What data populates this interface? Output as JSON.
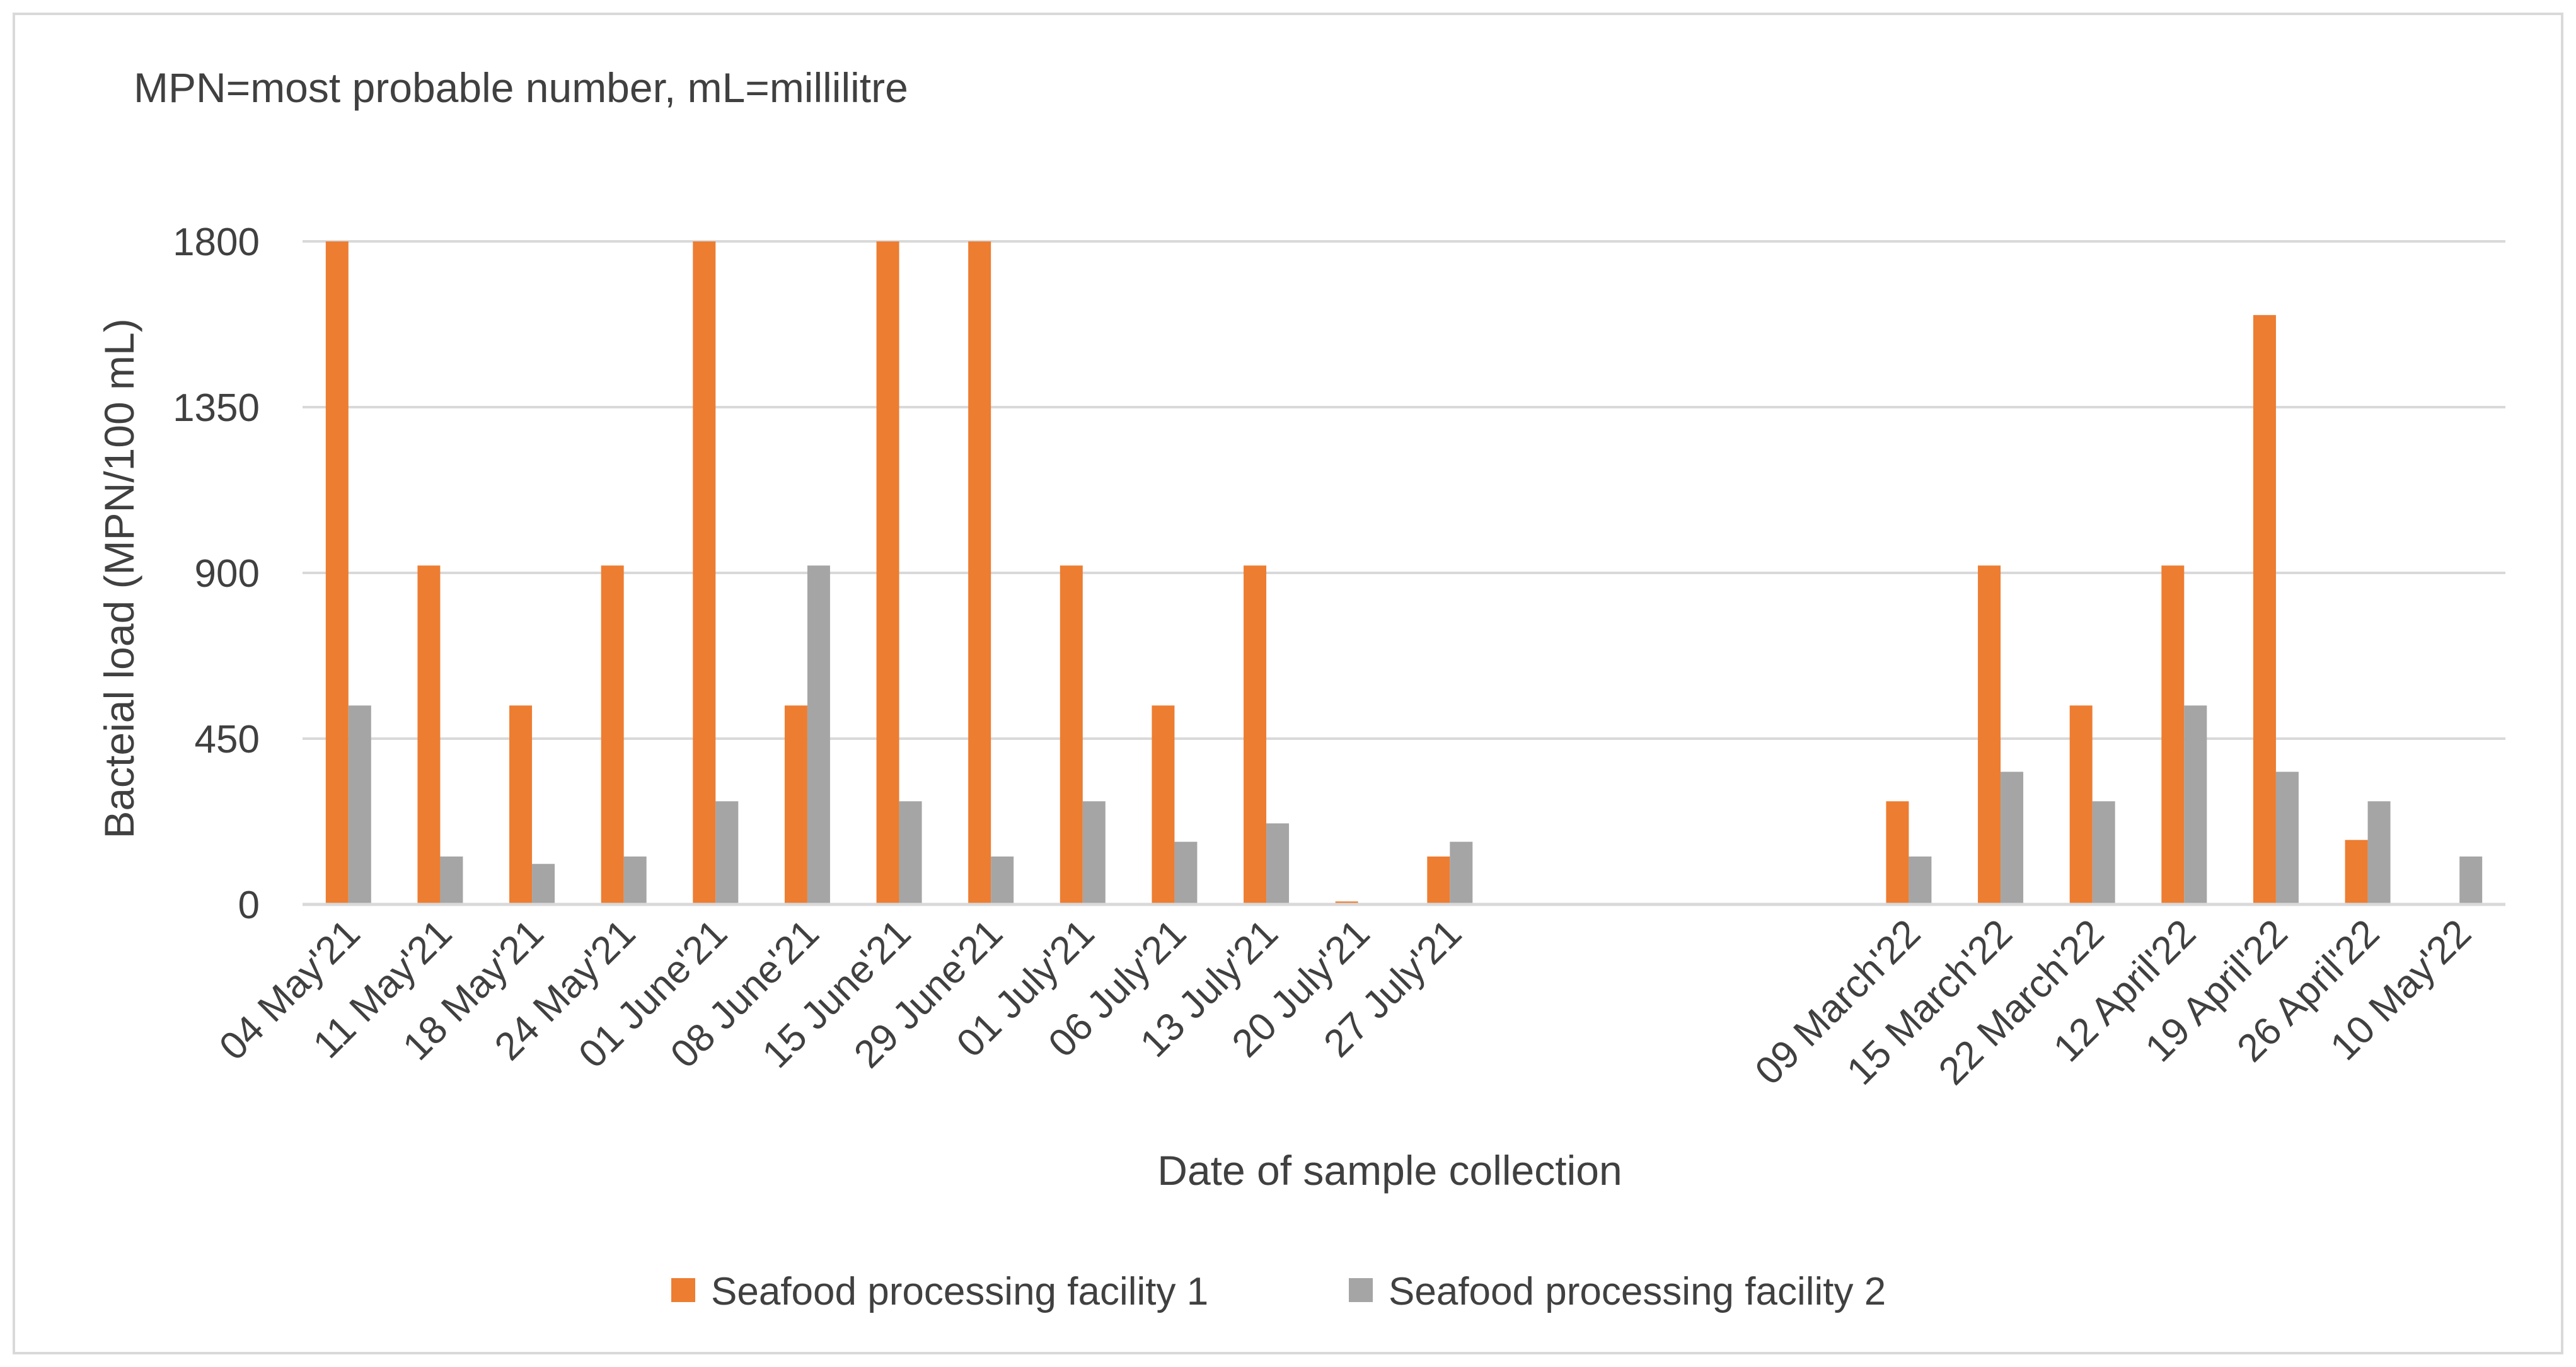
{
  "chart_data": {
    "type": "bar",
    "note": "MPN=most probable number, mL=millilitre",
    "title": "",
    "xlabel": "Date of sample collection",
    "ylabel": "Bacteial load (MPN/100 mL)",
    "ylim": [
      0,
      1800
    ],
    "yticks": [
      0,
      450,
      900,
      1350,
      1800
    ],
    "grid": true,
    "legend_position": "bottom",
    "categories": [
      "04 May'21",
      "11 May'21",
      "18 May'21",
      "24 May'21",
      "01 June'21",
      "08 June'21",
      "15 June'21",
      "29 June'21",
      "01 July'21",
      "06 July'21",
      "13 July'21",
      "20 July'21",
      "27 July'21",
      "",
      "",
      "",
      "",
      "09 March'22",
      "15 March'22",
      "22 March'22",
      "12 April'22",
      "19 April'22",
      "26 April'22",
      "10 May'22"
    ],
    "series": [
      {
        "name": "Seafood processing facility 1",
        "color": "#ED7D31",
        "values": [
          1800,
          920,
          540,
          920,
          1800,
          540,
          1800,
          1800,
          920,
          540,
          920,
          8,
          130,
          null,
          null,
          null,
          null,
          280,
          920,
          540,
          920,
          1600,
          175,
          null
        ]
      },
      {
        "name": "Seafood processing facility 2",
        "color": "#A5A5A5",
        "values": [
          540,
          130,
          110,
          130,
          280,
          920,
          280,
          130,
          280,
          170,
          220,
          null,
          170,
          null,
          null,
          null,
          null,
          130,
          360,
          280,
          540,
          360,
          280,
          130
        ]
      }
    ]
  }
}
